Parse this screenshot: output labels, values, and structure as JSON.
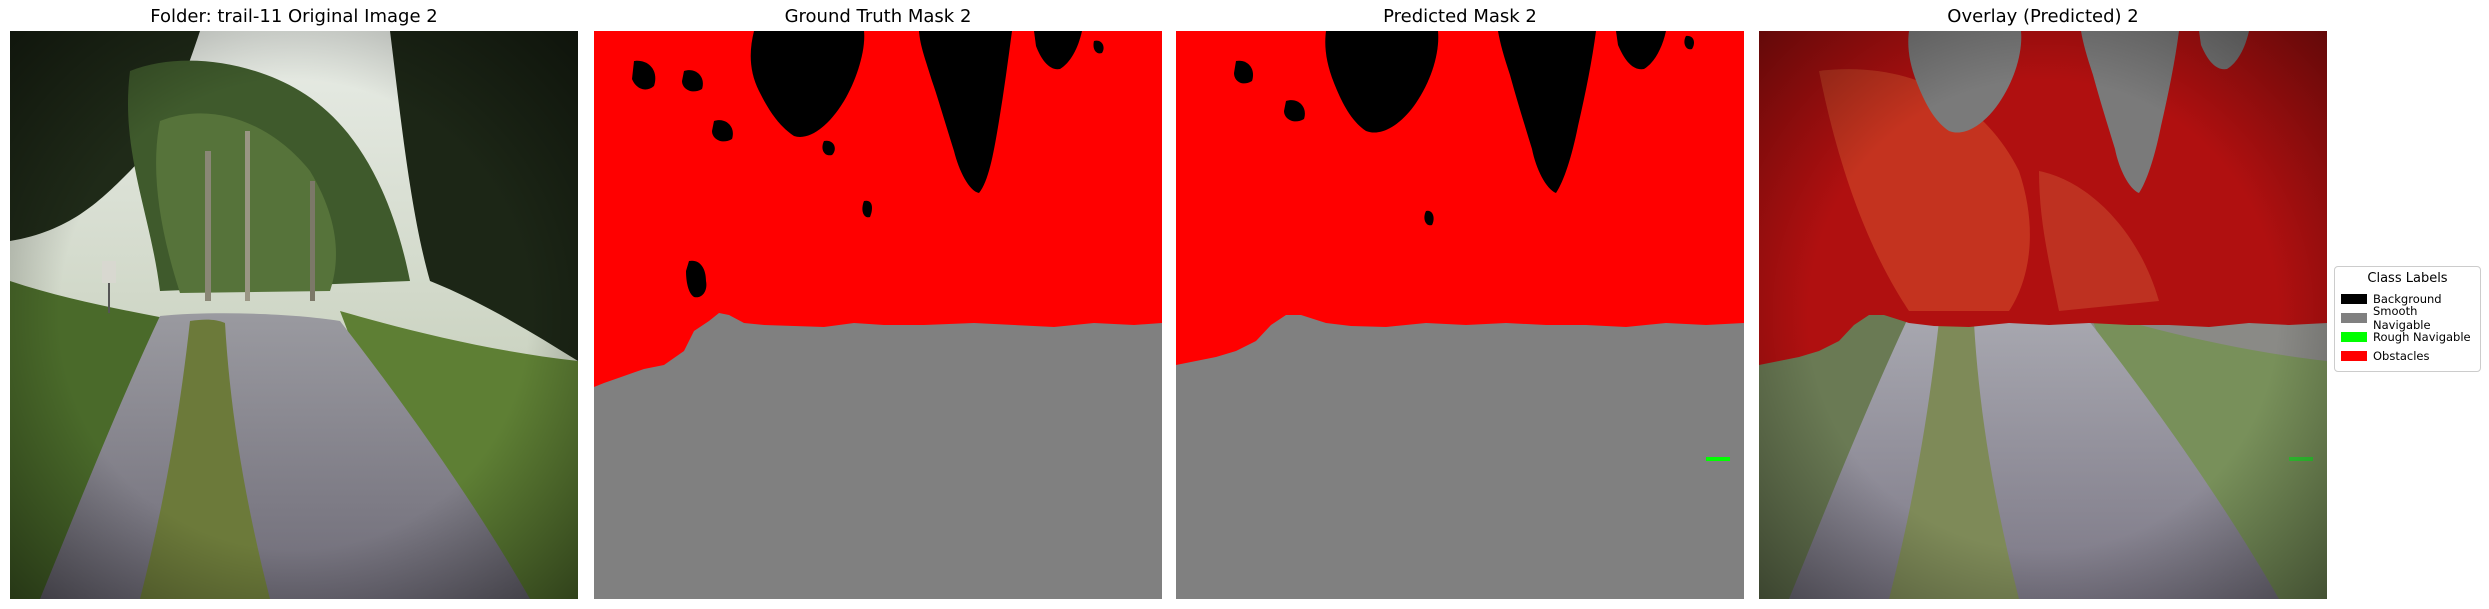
{
  "panels": [
    {
      "title": "Folder: trail-11 Original Image 2"
    },
    {
      "title": "Ground Truth Mask 2"
    },
    {
      "title": "Predicted Mask 2"
    },
    {
      "title": "Overlay (Predicted) 2"
    }
  ],
  "legend": {
    "title": "Class Labels",
    "items": [
      {
        "label": "Background",
        "color": "#000000"
      },
      {
        "label": "Smooth Navigable",
        "color": "#808080"
      },
      {
        "label": "Rough Navigable",
        "color": "#00ff00"
      },
      {
        "label": "Obstacles",
        "color": "#ff0000"
      }
    ]
  }
}
